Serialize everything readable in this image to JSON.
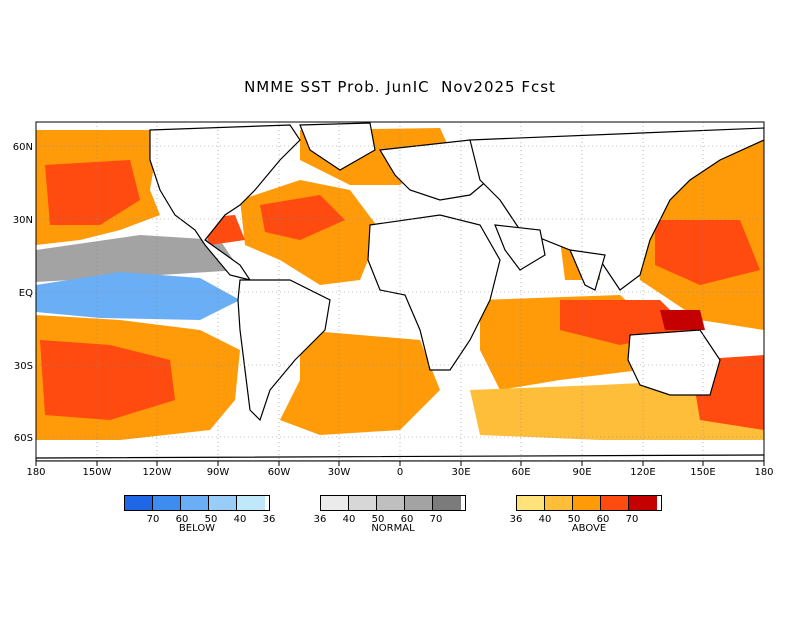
{
  "title": "NMME SST Prob. JunIC  Nov2025 Fcst",
  "axes": {
    "x_ticks": [
      "180",
      "150W",
      "120W",
      "90W",
      "60W",
      "30W",
      "0",
      "30E",
      "60E",
      "90E",
      "120E",
      "150E",
      "180"
    ],
    "y_ticks": [
      "60N",
      "30N",
      "EQ",
      "30S",
      "60S"
    ]
  },
  "legend": {
    "below": {
      "label": "BELOW",
      "colors": [
        "#1f67e6",
        "#3e8cf0",
        "#6aaef5",
        "#98cdf9",
        "#bfe8fb"
      ],
      "ticks": [
        "70",
        "60",
        "50",
        "40",
        "36"
      ]
    },
    "normal": {
      "label": "NORMAL",
      "colors": [
        "#ebebeb",
        "#d7d7d7",
        "#bfbfbf",
        "#a3a3a3",
        "#7b7b7b"
      ],
      "ticks": [
        "36",
        "40",
        "50",
        "60",
        "70"
      ]
    },
    "above": {
      "label": "ABOVE",
      "colors": [
        "#ffe27a",
        "#ffbe3a",
        "#ff9a08",
        "#ff4a10",
        "#c40000"
      ],
      "ticks": [
        "36",
        "40",
        "50",
        "60",
        "70"
      ]
    }
  },
  "colors": {
    "land_outline": "#000000",
    "grid": "#888888"
  }
}
